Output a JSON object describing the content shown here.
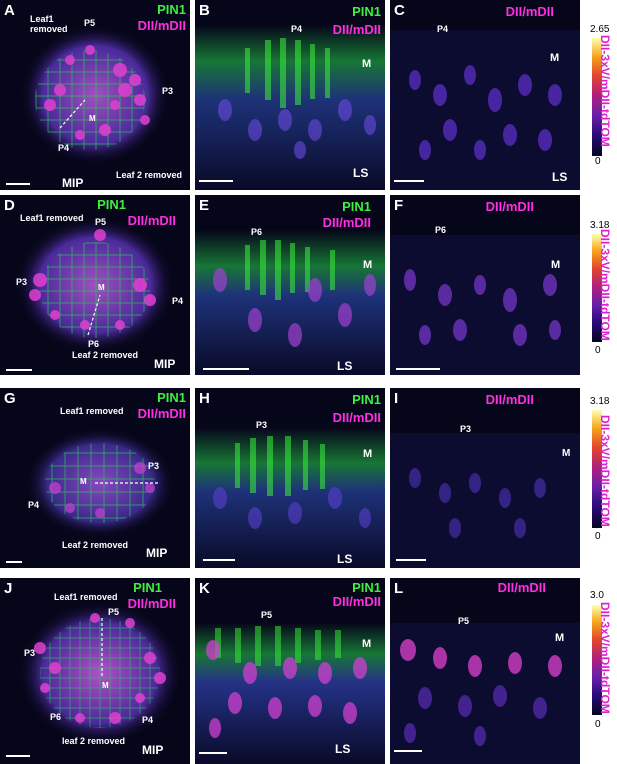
{
  "colors": {
    "green": "#3cf03c",
    "magenta": "#ff2ee0",
    "background": "#06061a"
  },
  "rows": [
    {
      "a": {
        "letter": "A",
        "pin": "PIN1",
        "dii": "DII/mDII",
        "leaf1": "Leaf1 removed",
        "leaf2": "Leaf 2 removed",
        "labels": [
          "P5",
          "P3",
          "P4",
          "M"
        ],
        "mode": "MIP"
      },
      "b": {
        "letter": "B",
        "pin": "PIN1",
        "dii": "DII/mDII",
        "labels": [
          "P4",
          "M"
        ],
        "mode": "LS"
      },
      "c": {
        "letter": "C",
        "dii": "DII/mDII",
        "labels": [
          "P4",
          "M"
        ],
        "mode": "LS"
      },
      "cbar": {
        "max": "2.65",
        "min": "0",
        "title": "DII-3xV/mDII-tdTOM"
      }
    },
    {
      "a": {
        "letter": "D",
        "pin": "PIN1",
        "dii": "DII/mDII",
        "leaf1": "Leaf1 removed",
        "leaf2": "Leaf 2 removed",
        "labels": [
          "P5",
          "P3",
          "P4",
          "P6",
          "M"
        ],
        "mode": "MIP"
      },
      "b": {
        "letter": "E",
        "pin": "PIN1",
        "dii": "DII/mDII",
        "labels": [
          "P6",
          "M"
        ],
        "mode": "LS"
      },
      "c": {
        "letter": "F",
        "dii": "DII/mDII",
        "labels": [
          "P6",
          "M"
        ],
        "mode": ""
      },
      "cbar": {
        "max": "3.18",
        "min": "0",
        "title": "DII-3xV/mDII-tdTOM"
      }
    },
    {
      "a": {
        "letter": "G",
        "pin": "PIN1",
        "dii": "DII/mDII",
        "leaf1": "Leaf1 removed",
        "leaf2": "Leaf 2 removed",
        "labels": [
          "P3",
          "P4",
          "M"
        ],
        "mode": "MIP"
      },
      "b": {
        "letter": "H",
        "pin": "PIN1",
        "dii": "DII/mDII",
        "labels": [
          "P3",
          "M"
        ],
        "mode": "LS"
      },
      "c": {
        "letter": "I",
        "dii": "DII/mDII",
        "labels": [
          "P3",
          "M"
        ],
        "mode": ""
      },
      "cbar": {
        "max": "3.18",
        "min": "0",
        "title": "DII-3xV/mDII-tdTOM"
      }
    },
    {
      "a": {
        "letter": "J",
        "pin": "PIN1",
        "dii": "DII/mDII",
        "leaf1": "Leaf1 removed",
        "leaf2": "leaf 2 removed",
        "labels": [
          "P5",
          "P3",
          "P6",
          "P4",
          "M"
        ],
        "mode": "MIP"
      },
      "b": {
        "letter": "K",
        "pin": "PIN1",
        "dii": "DII/mDII",
        "labels": [
          "P5",
          "M"
        ],
        "mode": "LS"
      },
      "c": {
        "letter": "L",
        "dii": "DII/mDII",
        "labels": [
          "P5",
          "M"
        ],
        "mode": ""
      },
      "cbar": {
        "max": "3.0",
        "min": "0",
        "title": "DII-3xV/mDII-tdTOM"
      }
    }
  ]
}
